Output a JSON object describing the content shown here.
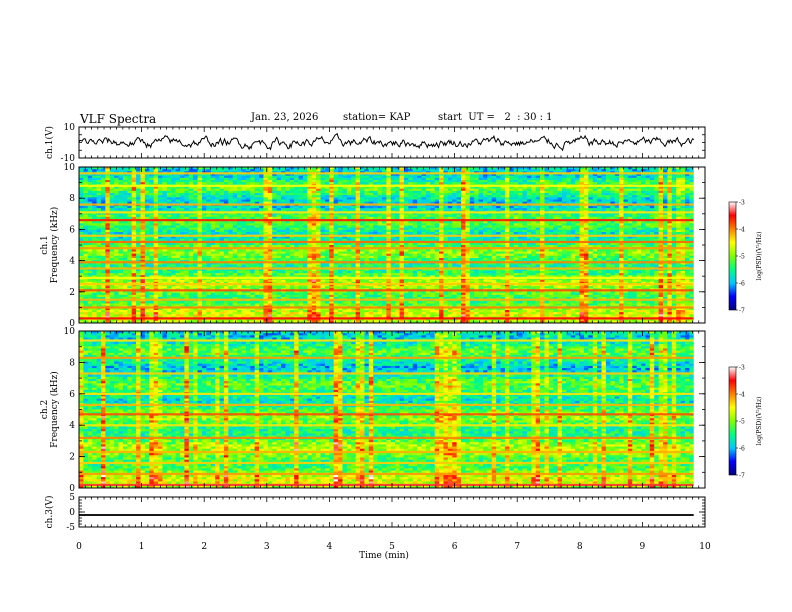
{
  "header": {
    "title": "VLF Spectra",
    "date": "Jan. 23, 2026",
    "station": "station= KAP",
    "start_ut": "start  UT =   2  : 30 : 1"
  },
  "chart_data": [
    {
      "type": "line",
      "panel": "ch1-waveform",
      "ylabel": "ch.1(V)",
      "ylim": [
        -10,
        10
      ],
      "yticks": [
        "10",
        "-10"
      ],
      "x_range_min": [
        0,
        9.82
      ],
      "description_series": "noisy voltage trace oscillating roughly between -5 and +6 V",
      "series": [
        {
          "name": "ch.1",
          "amplitude_range": [
            -5,
            6
          ]
        }
      ]
    },
    {
      "type": "heatmap",
      "panel": "ch1-spectrogram",
      "ylabel_line1": "ch.1",
      "ylabel_line2": "Frequency (kHz)",
      "ylim": [
        0,
        10
      ],
      "yticks": [
        "0",
        "2",
        "4",
        "6",
        "8",
        "10"
      ],
      "colorbar": {
        "label": "log(PSD)(V²/Hz)",
        "range": [
          -7,
          -3
        ],
        "ticks": [
          "-3",
          "-4",
          "-5",
          "-6",
          "-7"
        ],
        "colors": [
          "#000080",
          "#0000ff",
          "#00c8ff",
          "#00ff80",
          "#80ff00",
          "#ffff00",
          "#ff8000",
          "#ff0000",
          "#ffffff"
        ]
      },
      "bands_khz": [
        {
          "f": 0.3,
          "level": -3.5
        },
        {
          "f": 1.0,
          "level": -4.0
        },
        {
          "f": 1.5,
          "level": -4.2
        },
        {
          "f": 2.1,
          "level": -3.8
        },
        {
          "f": 2.5,
          "level": -4.3
        },
        {
          "f": 2.9,
          "level": -4.5
        },
        {
          "f": 3.5,
          "level": -4.2
        },
        {
          "f": 3.9,
          "level": -4.0
        },
        {
          "f": 4.8,
          "level": -4.1
        },
        {
          "f": 5.2,
          "level": -3.9
        },
        {
          "f": 5.6,
          "level": -4.3
        },
        {
          "f": 6.6,
          "level": -3.6
        },
        {
          "f": 7.1,
          "level": -4.4
        },
        {
          "f": 7.6,
          "level": -4.2
        },
        {
          "f": 8.8,
          "level": -4.5
        },
        {
          "f": 9.6,
          "level": -4.3
        }
      ]
    },
    {
      "type": "heatmap",
      "panel": "ch2-spectrogram",
      "ylabel_line1": "ch.2",
      "ylabel_line2": "Frequency (kHz)",
      "ylim": [
        0,
        10
      ],
      "yticks": [
        "0",
        "2",
        "4",
        "6",
        "8",
        "10"
      ],
      "colorbar": {
        "label": "log(PSD)(V²/Hz)",
        "range": [
          -7,
          -3
        ],
        "ticks": [
          "-3",
          "-4",
          "-5",
          "-6",
          "-7"
        ],
        "colors": [
          "#000080",
          "#0000ff",
          "#00c8ff",
          "#00ff80",
          "#80ff00",
          "#ffff00",
          "#ff8000",
          "#ff0000",
          "#ffffff"
        ]
      },
      "bands_khz": [
        {
          "f": 0.2,
          "level": -3.4
        },
        {
          "f": 0.9,
          "level": -4.1
        },
        {
          "f": 1.6,
          "level": -4.3
        },
        {
          "f": 2.3,
          "level": -4.2
        },
        {
          "f": 3.2,
          "level": -4.0
        },
        {
          "f": 4.0,
          "level": -4.4
        },
        {
          "f": 4.7,
          "level": -3.8
        },
        {
          "f": 5.3,
          "level": -4.2
        },
        {
          "f": 6.0,
          "level": -4.4
        },
        {
          "f": 7.3,
          "level": -4.3
        },
        {
          "f": 8.3,
          "level": -4.1
        },
        {
          "f": 9.4,
          "level": -4.4
        }
      ]
    },
    {
      "type": "line",
      "panel": "ch3-waveform",
      "ylabel": "ch.3(V)",
      "ylim": [
        -5,
        5
      ],
      "yticks": [
        "5",
        "0",
        "-5"
      ],
      "series": [
        {
          "name": "ch.3",
          "level_v": -1,
          "band_halfwidth_v": 0.3
        }
      ]
    },
    {
      "type": "axis",
      "xlabel": "Time (min)",
      "xlim": [
        0,
        10
      ],
      "xticks": [
        "0",
        "1",
        "2",
        "3",
        "4",
        "5",
        "6",
        "7",
        "8",
        "9",
        "10"
      ],
      "data_end_min": 9.82
    }
  ]
}
